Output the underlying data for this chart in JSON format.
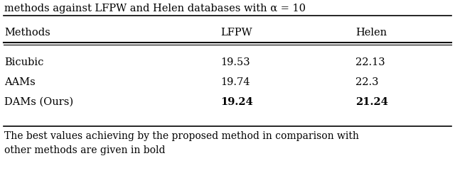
{
  "title_partial": "methods against LFPW and Helen databases with α = 10",
  "columns": [
    "Methods",
    "LFPW",
    "Helen"
  ],
  "rows": [
    [
      "Bicubic",
      "19.53",
      "22.13"
    ],
    [
      "AAMs",
      "19.74",
      "22.3"
    ],
    [
      "DAMs (Ours)",
      "19.24",
      "21.24"
    ]
  ],
  "bold_rows": [
    2
  ],
  "bold_cols": [
    1,
    2
  ],
  "caption": "The best values achieving by the proposed method in comparison with\nother methods are given in bold",
  "bg_color": "#ffffff",
  "text_color": "#000000",
  "font_size": 10.5,
  "caption_font_size": 10
}
